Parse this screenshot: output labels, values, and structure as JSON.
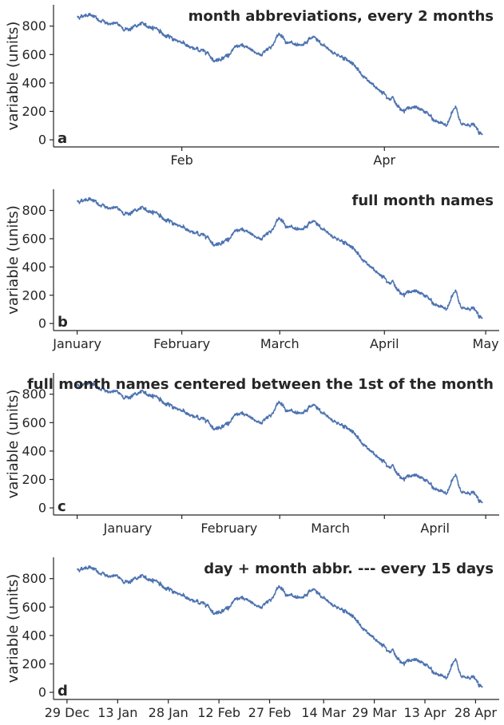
{
  "colors": {
    "series": "#4c72b0",
    "axis": "#262626"
  },
  "chart_data": [
    {
      "type": "line",
      "panel_label": "a",
      "title": "month abbreviations, every 2 months",
      "ylabel": "variable (units)",
      "xlim": [
        "2019-12-25",
        "2020-05-05"
      ],
      "ylim": [
        -50,
        950
      ],
      "yticks": [
        0,
        200,
        400,
        600,
        800
      ],
      "xticks": [
        {
          "date": "2020-02-01",
          "label": "Feb"
        },
        {
          "date": "2020-04-01",
          "label": "Apr"
        }
      ],
      "x_start": "2020-01-01",
      "x_end": "2020-04-30",
      "anchors": [
        [
          "2020-01-01",
          865
        ],
        [
          "2020-01-05",
          885
        ],
        [
          "2020-01-08",
          830
        ],
        [
          "2020-01-12",
          815
        ],
        [
          "2020-01-16",
          780
        ],
        [
          "2020-01-20",
          810
        ],
        [
          "2020-01-24",
          790
        ],
        [
          "2020-01-28",
          720
        ],
        [
          "2020-02-01",
          690
        ],
        [
          "2020-02-04",
          640
        ],
        [
          "2020-02-08",
          625
        ],
        [
          "2020-02-11",
          560
        ],
        [
          "2020-02-14",
          590
        ],
        [
          "2020-02-18",
          660
        ],
        [
          "2020-02-21",
          640
        ],
        [
          "2020-02-24",
          600
        ],
        [
          "2020-02-27",
          650
        ],
        [
          "2020-03-01",
          740
        ],
        [
          "2020-03-04",
          680
        ],
        [
          "2020-03-07",
          650
        ],
        [
          "2020-03-11",
          720
        ],
        [
          "2020-03-14",
          660
        ],
        [
          "2020-03-18",
          600
        ],
        [
          "2020-03-22",
          550
        ],
        [
          "2020-03-26",
          440
        ],
        [
          "2020-03-30",
          360
        ],
        [
          "2020-04-03",
          300
        ],
        [
          "2020-04-06",
          210
        ],
        [
          "2020-04-09",
          230
        ],
        [
          "2020-04-13",
          200
        ],
        [
          "2020-04-16",
          130
        ],
        [
          "2020-04-19",
          110
        ],
        [
          "2020-04-22",
          220
        ],
        [
          "2020-04-24",
          100
        ],
        [
          "2020-04-27",
          110
        ],
        [
          "2020-04-30",
          30
        ]
      ]
    },
    {
      "type": "line",
      "panel_label": "b",
      "title": "full month names",
      "ylabel": "variable (units)",
      "xlim": [
        "2019-12-25",
        "2020-05-05"
      ],
      "ylim": [
        -50,
        950
      ],
      "yticks": [
        0,
        200,
        400,
        600,
        800
      ],
      "xticks": [
        {
          "date": "2020-01-01",
          "label": "January"
        },
        {
          "date": "2020-02-01",
          "label": "February"
        },
        {
          "date": "2020-03-01",
          "label": "March"
        },
        {
          "date": "2020-04-01",
          "label": "April"
        },
        {
          "date": "2020-05-01",
          "label": "May"
        }
      ],
      "x_start": "2020-01-01",
      "x_end": "2020-04-30",
      "anchors": [
        [
          "2020-01-01",
          865
        ],
        [
          "2020-01-05",
          885
        ],
        [
          "2020-01-08",
          830
        ],
        [
          "2020-01-12",
          815
        ],
        [
          "2020-01-16",
          780
        ],
        [
          "2020-01-20",
          810
        ],
        [
          "2020-01-24",
          790
        ],
        [
          "2020-01-28",
          720
        ],
        [
          "2020-02-01",
          690
        ],
        [
          "2020-02-04",
          640
        ],
        [
          "2020-02-08",
          625
        ],
        [
          "2020-02-11",
          560
        ],
        [
          "2020-02-14",
          590
        ],
        [
          "2020-02-18",
          660
        ],
        [
          "2020-02-21",
          640
        ],
        [
          "2020-02-24",
          600
        ],
        [
          "2020-02-27",
          650
        ],
        [
          "2020-03-01",
          740
        ],
        [
          "2020-03-04",
          680
        ],
        [
          "2020-03-07",
          650
        ],
        [
          "2020-03-11",
          720
        ],
        [
          "2020-03-14",
          660
        ],
        [
          "2020-03-18",
          600
        ],
        [
          "2020-03-22",
          550
        ],
        [
          "2020-03-26",
          440
        ],
        [
          "2020-03-30",
          360
        ],
        [
          "2020-04-03",
          300
        ],
        [
          "2020-04-06",
          210
        ],
        [
          "2020-04-09",
          230
        ],
        [
          "2020-04-13",
          200
        ],
        [
          "2020-04-16",
          130
        ],
        [
          "2020-04-19",
          110
        ],
        [
          "2020-04-22",
          220
        ],
        [
          "2020-04-24",
          100
        ],
        [
          "2020-04-27",
          110
        ],
        [
          "2020-04-30",
          30
        ]
      ]
    },
    {
      "type": "line",
      "panel_label": "c",
      "title": "full month names centered between the 1st of the month",
      "ylabel": "variable (units)",
      "xlim": [
        "2019-12-25",
        "2020-05-05"
      ],
      "ylim": [
        -50,
        950
      ],
      "yticks": [
        0,
        200,
        400,
        600,
        800
      ],
      "xticks": [
        {
          "date": "2020-01-01",
          "label": ""
        },
        {
          "date": "2020-02-01",
          "label": ""
        },
        {
          "date": "2020-03-01",
          "label": ""
        },
        {
          "date": "2020-04-01",
          "label": ""
        },
        {
          "date": "2020-05-01",
          "label": ""
        }
      ],
      "minor_labels": [
        {
          "date": "2020-01-16",
          "label": "January"
        },
        {
          "date": "2020-02-15",
          "label": "February"
        },
        {
          "date": "2020-03-16",
          "label": "March"
        },
        {
          "date": "2020-04-16",
          "label": "April"
        }
      ],
      "x_start": "2020-01-01",
      "x_end": "2020-04-30",
      "anchors": [
        [
          "2020-01-01",
          865
        ],
        [
          "2020-01-05",
          885
        ],
        [
          "2020-01-08",
          830
        ],
        [
          "2020-01-12",
          815
        ],
        [
          "2020-01-16",
          780
        ],
        [
          "2020-01-20",
          810
        ],
        [
          "2020-01-24",
          790
        ],
        [
          "2020-01-28",
          720
        ],
        [
          "2020-02-01",
          690
        ],
        [
          "2020-02-04",
          640
        ],
        [
          "2020-02-08",
          625
        ],
        [
          "2020-02-11",
          560
        ],
        [
          "2020-02-14",
          590
        ],
        [
          "2020-02-18",
          660
        ],
        [
          "2020-02-21",
          640
        ],
        [
          "2020-02-24",
          600
        ],
        [
          "2020-02-27",
          650
        ],
        [
          "2020-03-01",
          740
        ],
        [
          "2020-03-04",
          680
        ],
        [
          "2020-03-07",
          650
        ],
        [
          "2020-03-11",
          720
        ],
        [
          "2020-03-14",
          660
        ],
        [
          "2020-03-18",
          600
        ],
        [
          "2020-03-22",
          550
        ],
        [
          "2020-03-26",
          440
        ],
        [
          "2020-03-30",
          360
        ],
        [
          "2020-04-03",
          300
        ],
        [
          "2020-04-06",
          210
        ],
        [
          "2020-04-09",
          230
        ],
        [
          "2020-04-13",
          200
        ],
        [
          "2020-04-16",
          130
        ],
        [
          "2020-04-19",
          110
        ],
        [
          "2020-04-22",
          220
        ],
        [
          "2020-04-24",
          100
        ],
        [
          "2020-04-27",
          110
        ],
        [
          "2020-04-30",
          30
        ]
      ]
    },
    {
      "type": "line",
      "panel_label": "d",
      "title": "day + month abbr. --- every 15 days",
      "ylabel": "variable (units)",
      "xlim": [
        "2019-12-25",
        "2020-05-05"
      ],
      "ylim": [
        -50,
        950
      ],
      "yticks": [
        0,
        200,
        400,
        600,
        800
      ],
      "xticks": [
        {
          "date": "2019-12-29",
          "label": "29 Dec"
        },
        {
          "date": "2020-01-13",
          "label": "13 Jan"
        },
        {
          "date": "2020-01-28",
          "label": "28 Jan"
        },
        {
          "date": "2020-02-12",
          "label": "12 Feb"
        },
        {
          "date": "2020-02-27",
          "label": "27 Feb"
        },
        {
          "date": "2020-03-14",
          "label": "14 Mar"
        },
        {
          "date": "2020-03-29",
          "label": "29 Mar"
        },
        {
          "date": "2020-04-13",
          "label": "13 Apr"
        },
        {
          "date": "2020-04-28",
          "label": "28 Apr"
        }
      ],
      "x_start": "2020-01-01",
      "x_end": "2020-04-30",
      "anchors": [
        [
          "2020-01-01",
          865
        ],
        [
          "2020-01-05",
          885
        ],
        [
          "2020-01-08",
          830
        ],
        [
          "2020-01-12",
          815
        ],
        [
          "2020-01-16",
          780
        ],
        [
          "2020-01-20",
          810
        ],
        [
          "2020-01-24",
          790
        ],
        [
          "2020-01-28",
          720
        ],
        [
          "2020-02-01",
          690
        ],
        [
          "2020-02-04",
          640
        ],
        [
          "2020-02-08",
          625
        ],
        [
          "2020-02-11",
          560
        ],
        [
          "2020-02-14",
          590
        ],
        [
          "2020-02-18",
          660
        ],
        [
          "2020-02-21",
          640
        ],
        [
          "2020-02-24",
          600
        ],
        [
          "2020-02-27",
          650
        ],
        [
          "2020-03-01",
          740
        ],
        [
          "2020-03-04",
          680
        ],
        [
          "2020-03-07",
          650
        ],
        [
          "2020-03-11",
          720
        ],
        [
          "2020-03-14",
          660
        ],
        [
          "2020-03-18",
          600
        ],
        [
          "2020-03-22",
          550
        ],
        [
          "2020-03-26",
          440
        ],
        [
          "2020-03-30",
          360
        ],
        [
          "2020-04-03",
          300
        ],
        [
          "2020-04-06",
          210
        ],
        [
          "2020-04-09",
          230
        ],
        [
          "2020-04-13",
          200
        ],
        [
          "2020-04-16",
          130
        ],
        [
          "2020-04-19",
          110
        ],
        [
          "2020-04-22",
          220
        ],
        [
          "2020-04-24",
          100
        ],
        [
          "2020-04-27",
          110
        ],
        [
          "2020-04-30",
          30
        ]
      ]
    }
  ]
}
